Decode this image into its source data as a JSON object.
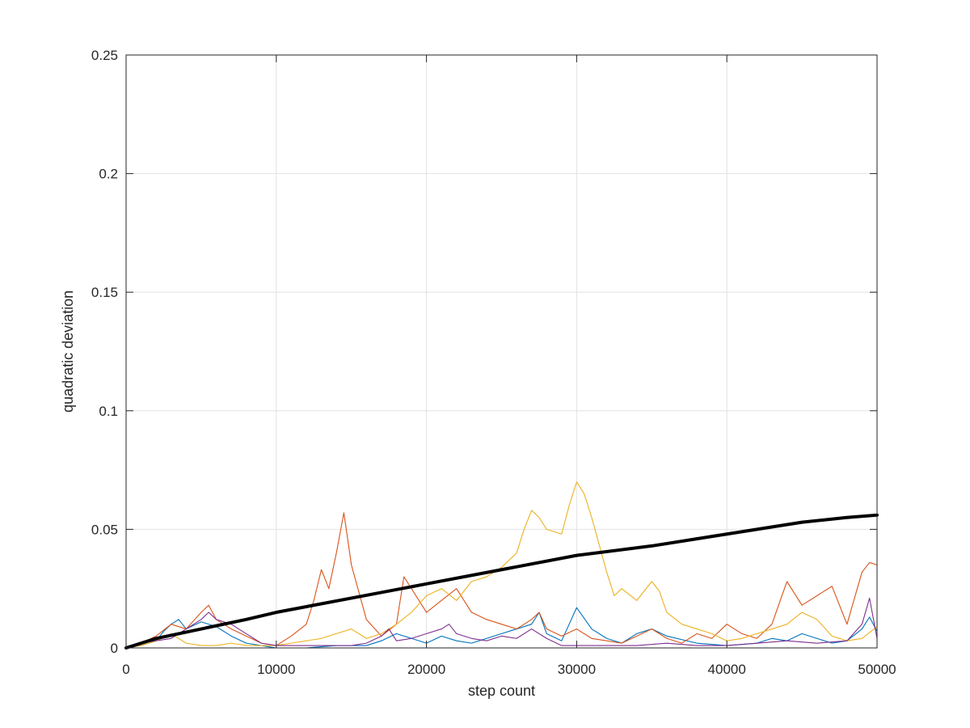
{
  "chart_data": {
    "type": "line",
    "title": "",
    "xlabel": "step count",
    "ylabel": "quadratic deviation",
    "xlim": [
      0,
      50000
    ],
    "ylim": [
      0,
      0.25
    ],
    "xticks": [
      0,
      10000,
      20000,
      30000,
      40000,
      50000
    ],
    "xtick_labels": [
      "0",
      "10000",
      "20000",
      "30000",
      "40000",
      "50000"
    ],
    "yticks": [
      0,
      0.05,
      0.1,
      0.15,
      0.2,
      0.25
    ],
    "ytick_labels": [
      "0",
      "0.05",
      "0.1",
      "0.15",
      "0.2",
      "0.25"
    ],
    "grid": true,
    "legend": "none",
    "series": [
      {
        "color": "#0072BD",
        "x": [
          0,
          1000,
          2000,
          2500,
          3000,
          3500,
          4000,
          5000,
          6000,
          7000,
          8000,
          9000,
          10000,
          12000,
          14000,
          16000,
          17000,
          18000,
          19000,
          20000,
          21000,
          22000,
          23000,
          24000,
          25000,
          26000,
          27000,
          27500,
          28000,
          29000,
          29500,
          30000,
          31000,
          32000,
          33000,
          34000,
          35000,
          36000,
          38000,
          40000,
          42000,
          43000,
          44000,
          45000,
          46000,
          47000,
          48000,
          49000,
          49500,
          50000
        ],
        "y": [
          0,
          0.001,
          0.003,
          0.007,
          0.01,
          0.012,
          0.008,
          0.011,
          0.009,
          0.005,
          0.002,
          0.001,
          0,
          0,
          0.001,
          0.001,
          0.003,
          0.006,
          0.004,
          0.002,
          0.005,
          0.003,
          0.002,
          0.004,
          0.006,
          0.008,
          0.01,
          0.015,
          0.006,
          0.003,
          0.01,
          0.017,
          0.008,
          0.004,
          0.002,
          0.006,
          0.008,
          0.005,
          0.002,
          0.001,
          0.002,
          0.004,
          0.003,
          0.006,
          0.004,
          0.002,
          0.003,
          0.008,
          0.013,
          0.007
        ]
      },
      {
        "color": "#D95319",
        "x": [
          0,
          1000,
          2000,
          3000,
          4000,
          5000,
          5500,
          6000,
          7000,
          8000,
          9000,
          10000,
          11000,
          12000,
          12500,
          13000,
          13500,
          14000,
          14500,
          15000,
          16000,
          17000,
          18000,
          18500,
          19000,
          20000,
          21000,
          22000,
          23000,
          24000,
          25000,
          26000,
          27000,
          27500,
          28000,
          29000,
          30000,
          31000,
          32000,
          33000,
          34000,
          35000,
          36000,
          37000,
          38000,
          39000,
          40000,
          41000,
          42000,
          43000,
          44000,
          45000,
          46000,
          47000,
          48000,
          49000,
          49500,
          50000
        ],
        "y": [
          0,
          0.002,
          0.005,
          0.01,
          0.008,
          0.015,
          0.018,
          0.012,
          0.008,
          0.005,
          0.002,
          0.001,
          0.005,
          0.01,
          0.02,
          0.033,
          0.025,
          0.04,
          0.057,
          0.035,
          0.012,
          0.005,
          0.01,
          0.03,
          0.025,
          0.015,
          0.02,
          0.025,
          0.015,
          0.012,
          0.01,
          0.008,
          0.012,
          0.015,
          0.008,
          0.005,
          0.008,
          0.004,
          0.003,
          0.002,
          0.005,
          0.008,
          0.004,
          0.002,
          0.006,
          0.004,
          0.01,
          0.006,
          0.004,
          0.01,
          0.028,
          0.018,
          0.022,
          0.026,
          0.01,
          0.032,
          0.036,
          0.035
        ]
      },
      {
        "color": "#EDB120",
        "x": [
          0,
          1000,
          2000,
          3000,
          4000,
          5000,
          6000,
          7000,
          8000,
          9000,
          10000,
          11000,
          12000,
          13000,
          14000,
          15000,
          16000,
          17000,
          18000,
          19000,
          20000,
          21000,
          22000,
          23000,
          24000,
          25000,
          26000,
          26500,
          27000,
          27500,
          28000,
          29000,
          29500,
          30000,
          30500,
          31000,
          32000,
          32500,
          33000,
          34000,
          35000,
          35500,
          36000,
          37000,
          38000,
          39000,
          40000,
          41000,
          42000,
          43000,
          44000,
          45000,
          46000,
          47000,
          48000,
          49000,
          50000
        ],
        "y": [
          0,
          0.001,
          0.003,
          0.006,
          0.002,
          0.001,
          0.001,
          0.002,
          0.001,
          0.001,
          0.001,
          0.002,
          0.003,
          0.004,
          0.006,
          0.008,
          0.004,
          0.006,
          0.01,
          0.015,
          0.022,
          0.025,
          0.02,
          0.028,
          0.03,
          0.034,
          0.04,
          0.05,
          0.058,
          0.055,
          0.05,
          0.048,
          0.06,
          0.07,
          0.065,
          0.055,
          0.032,
          0.022,
          0.025,
          0.02,
          0.028,
          0.024,
          0.015,
          0.01,
          0.008,
          0.006,
          0.003,
          0.004,
          0.006,
          0.008,
          0.01,
          0.015,
          0.012,
          0.005,
          0.003,
          0.004,
          0.009
        ]
      },
      {
        "color": "#7E2F8E",
        "x": [
          0,
          1000,
          2000,
          3000,
          4000,
          5000,
          5500,
          6000,
          7000,
          8000,
          9000,
          10000,
          12000,
          14000,
          15000,
          16000,
          17000,
          17500,
          18000,
          19000,
          20000,
          21000,
          21500,
          22000,
          23000,
          24000,
          25000,
          26000,
          27000,
          28000,
          29000,
          30000,
          32000,
          34000,
          36000,
          38000,
          40000,
          42000,
          44000,
          46000,
          48000,
          49000,
          49500,
          50000
        ],
        "y": [
          0,
          0.002,
          0.003,
          0.004,
          0.008,
          0.012,
          0.015,
          0.012,
          0.01,
          0.006,
          0.002,
          0.001,
          0.001,
          0.001,
          0.001,
          0.002,
          0.005,
          0.008,
          0.003,
          0.004,
          0.006,
          0.008,
          0.01,
          0.006,
          0.004,
          0.003,
          0.005,
          0.004,
          0.008,
          0.004,
          0.001,
          0.001,
          0.001,
          0.001,
          0.002,
          0.001,
          0.001,
          0.002,
          0.003,
          0.002,
          0.003,
          0.01,
          0.021,
          0.004
        ]
      },
      {
        "color": "#000000",
        "x": [
          0,
          2000,
          5000,
          8000,
          10000,
          15000,
          20000,
          25000,
          30000,
          35000,
          40000,
          45000,
          48000,
          50000
        ],
        "y": [
          0,
          0.004,
          0.008,
          0.012,
          0.015,
          0.021,
          0.027,
          0.033,
          0.039,
          0.043,
          0.048,
          0.053,
          0.055,
          0.056
        ]
      }
    ]
  }
}
